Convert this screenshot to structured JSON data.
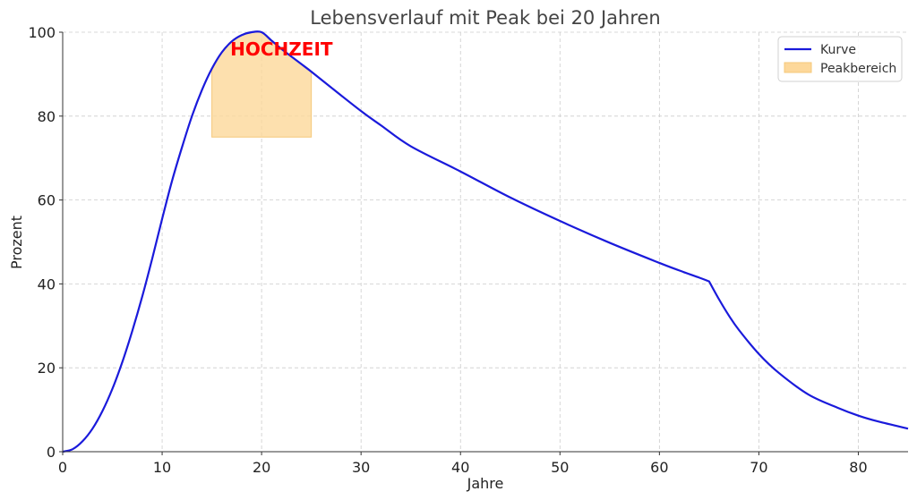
{
  "chart_data": {
    "type": "line",
    "title": "Lebensverlauf mit Peak bei 20 Jahren",
    "xlabel": "Jahre",
    "ylabel": "Prozent",
    "xlim": [
      0,
      85
    ],
    "ylim": [
      0,
      100
    ],
    "xticks": [
      0,
      10,
      20,
      30,
      40,
      50,
      60,
      70,
      80
    ],
    "yticks": [
      0,
      20,
      40,
      60,
      80,
      100
    ],
    "grid": true,
    "legend_position": "top-right",
    "series": [
      {
        "name": "Kurve",
        "color": "#1a1adb",
        "x": [
          0,
          1,
          2,
          3,
          4,
          5,
          6,
          7,
          8,
          9,
          10,
          11,
          12,
          13,
          14,
          15,
          16,
          17,
          18,
          19,
          20,
          21,
          22,
          23,
          24,
          25,
          27,
          30,
          32,
          35,
          40,
          45,
          50,
          55,
          60,
          62,
          64,
          65,
          66,
          67,
          68,
          70,
          72,
          75,
          78,
          80,
          82,
          85
        ],
        "y": [
          0,
          0.6,
          2.5,
          5.5,
          9.7,
          15,
          21.4,
          28.8,
          37,
          46,
          55.5,
          64.6,
          72.6,
          80,
          86.2,
          91.3,
          95.2,
          97.8,
          99.3,
          100,
          100,
          98,
          96,
          94.2,
          92.4,
          90.6,
          86.8,
          81.2,
          77.8,
          72.8,
          66.8,
          60.6,
          55,
          49.8,
          45,
          43.2,
          41.5,
          40.6,
          36.3,
          32.4,
          29,
          23.3,
          18.8,
          13.6,
          10.4,
          8.6,
          7.2,
          5.5
        ]
      }
    ],
    "shaded_region": {
      "name": "Peakbereich",
      "color": "#fdd89a",
      "x_range": [
        15,
        25
      ],
      "y_min": 75
    },
    "annotation": {
      "text": "HOCHZEIT",
      "color": "#ff0000",
      "x": 22,
      "y": 96
    }
  }
}
